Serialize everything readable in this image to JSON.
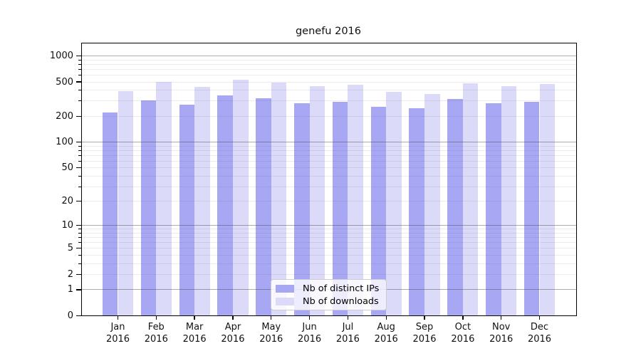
{
  "chart_data": {
    "type": "bar",
    "title": "genefu 2016",
    "categories": [
      "Jan 2016",
      "Feb 2016",
      "Mar 2016",
      "Apr 2016",
      "May 2016",
      "Jun 2016",
      "Jul 2016",
      "Aug 2016",
      "Sep 2016",
      "Oct 2016",
      "Nov 2016",
      "Dec 2016"
    ],
    "series": [
      {
        "name": "Nb of distinct IPs",
        "color": "#a7a7f3",
        "values": [
          220,
          303,
          272,
          346,
          322,
          283,
          297,
          259,
          246,
          317,
          283,
          297
        ]
      },
      {
        "name": "Nb of downloads",
        "color": "#dbdbf9",
        "values": [
          390,
          497,
          440,
          530,
          495,
          451,
          464,
          385,
          361,
          486,
          450,
          471
        ]
      }
    ],
    "xlabel": "",
    "ylabel": "",
    "yscale": "log1p",
    "ylim": [
      0,
      1420
    ],
    "yticks": [
      0,
      1,
      2,
      5,
      10,
      20,
      50,
      100,
      200,
      500,
      1000
    ],
    "grid": true,
    "legend_position": "lower center"
  }
}
